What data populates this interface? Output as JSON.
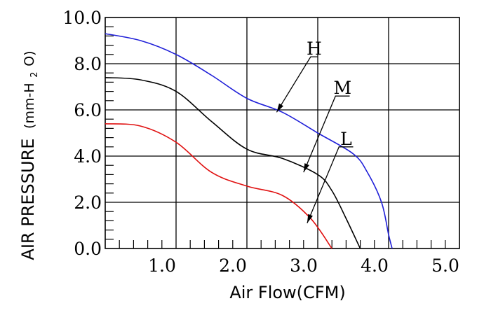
{
  "chart_data": {
    "type": "line",
    "xlabel": "Air Flow(CFM)",
    "ylabel_main": "AIR PRESSURE",
    "ylabel_unit": "(mm-H",
    "ylabel_unit_sub": "2",
    "ylabel_unit_end": "O)",
    "xlim": [
      0,
      5.0
    ],
    "ylim": [
      0,
      10.0
    ],
    "xticks": [
      "1.0",
      "2.0",
      "3.0",
      "4.0",
      "5.0"
    ],
    "yticks": [
      "0.0",
      "2.0",
      "4.0",
      "6.0",
      "8.0",
      "10.0"
    ],
    "grid": true,
    "series": [
      {
        "name": "H",
        "color": "#1f1fd8",
        "points": [
          [
            0,
            9.3
          ],
          [
            0.5,
            9.0
          ],
          [
            1.0,
            8.4
          ],
          [
            1.5,
            7.5
          ],
          [
            2.0,
            6.5
          ],
          [
            2.5,
            5.9
          ],
          [
            3.0,
            5.0
          ],
          [
            3.5,
            4.1
          ],
          [
            3.7,
            3.3
          ],
          [
            3.9,
            2.0
          ],
          [
            4.0,
            0.6
          ],
          [
            4.05,
            0.0
          ]
        ]
      },
      {
        "name": "M",
        "color": "#000000",
        "points": [
          [
            0,
            7.4
          ],
          [
            0.5,
            7.3
          ],
          [
            1.0,
            6.8
          ],
          [
            1.5,
            5.5
          ],
          [
            2.0,
            4.3
          ],
          [
            2.5,
            3.9
          ],
          [
            3.0,
            3.2
          ],
          [
            3.2,
            2.5
          ],
          [
            3.4,
            1.3
          ],
          [
            3.6,
            0.0
          ]
        ]
      },
      {
        "name": "L",
        "color": "#e01010",
        "points": [
          [
            0,
            5.4
          ],
          [
            0.5,
            5.3
          ],
          [
            1.0,
            4.6
          ],
          [
            1.5,
            3.3
          ],
          [
            2.0,
            2.7
          ],
          [
            2.5,
            2.3
          ],
          [
            2.9,
            1.3
          ],
          [
            3.2,
            0.0
          ]
        ]
      }
    ],
    "annotations": [
      {
        "text": "H",
        "series": "H",
        "points": [
          [
            2.42,
            5.9
          ],
          [
            2.9,
            8.3
          ],
          [
            3.0,
            8.3
          ]
        ]
      },
      {
        "text": "M",
        "series": "M",
        "points": [
          [
            2.8,
            3.3
          ],
          [
            3.25,
            6.6
          ],
          [
            3.45,
            6.6
          ]
        ]
      },
      {
        "text": "L",
        "series": "L",
        "points": [
          [
            2.85,
            1.1
          ],
          [
            3.3,
            4.4
          ],
          [
            3.5,
            4.4
          ]
        ]
      }
    ]
  }
}
